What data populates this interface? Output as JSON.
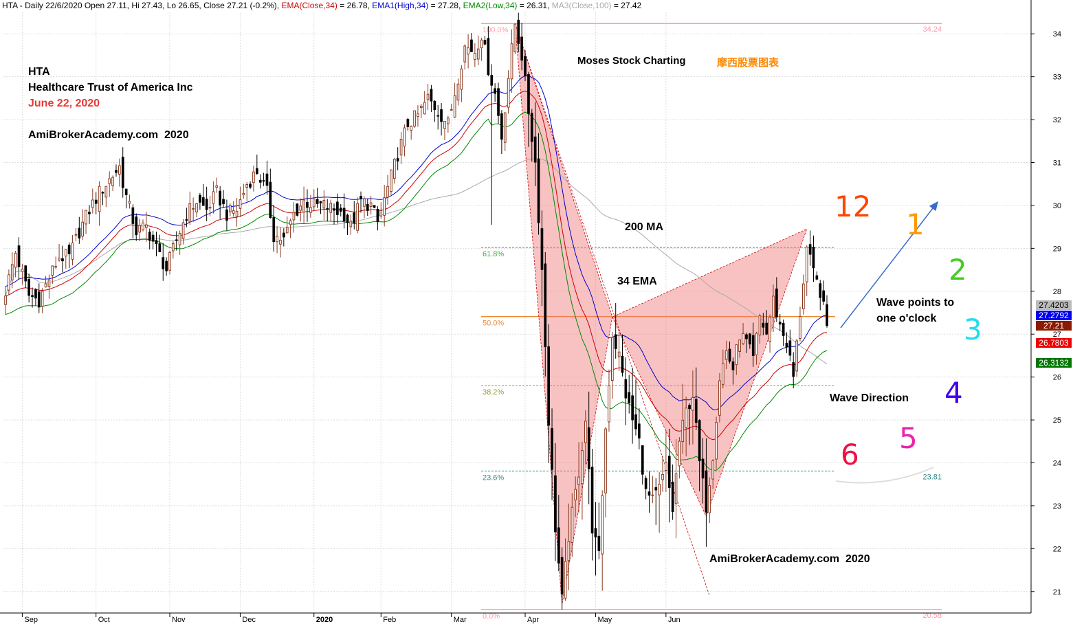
{
  "header": {
    "summary": "HTA - Daily 22/6/2020 Open 27.11, Hi 27.43, Lo 26.65, Close 27.21 (-0.2%)",
    "ema34_close": {
      "label": "EMA(Close,34)",
      "value": "= 26.78,",
      "color": "#cc0000"
    },
    "ema34_high": {
      "label": "EMA1(High,34)",
      "value": "= 27.28,",
      "color": "#0000cc"
    },
    "ema34_low": {
      "label": "EMA2(Low,34)",
      "value": "= 26.31,",
      "color": "#008800"
    },
    "ma100": {
      "label": "MA3(Close,100)",
      "value": "= 27.42",
      "color": "#aaaaaa"
    }
  },
  "annotations": {
    "ticker": "HTA",
    "company": "Healthcare Trust of America Inc",
    "date": "June 22, 2020",
    "site_top": "AmiBrokerAcademy.com  2020",
    "brand_en": "Moses Stock Charting",
    "brand_cn": "摩西股票图表",
    "ma200": "200 MA",
    "ema34": "34 EMA",
    "wave_points_1": "Wave points to",
    "wave_points_2": "one o'clock",
    "wave_direction": "Wave Direction",
    "site_bottom": "AmiBrokerAcademy.com  2020"
  },
  "clock": {
    "n12": "12",
    "n1": "1",
    "n2": "2",
    "n3": "3",
    "n4": "4",
    "n5": "5",
    "n6": "6",
    "colors": {
      "n12": "#ff4400",
      "n1": "#ff9900",
      "n2": "#44cc22",
      "n3": "#22ddee",
      "n4": "#4400ee",
      "n5": "#ee22aa",
      "n6": "#ee1144"
    }
  },
  "price_labels": {
    "ma100": {
      "text": "27.4203",
      "color": "#bbbbbb"
    },
    "ema_high": {
      "text": "27.2792",
      "color": "#0000ee"
    },
    "close": {
      "text": "27.21",
      "color": "#8b1a00"
    },
    "ema_close": {
      "text": "26.7803",
      "color": "#ee0000"
    },
    "ema_low": {
      "text": "26.3132",
      "color": "#007700"
    }
  },
  "chart_data": {
    "type": "candlestick",
    "ylim": [
      20.5,
      34.5
    ],
    "y_ticks": [
      21,
      22,
      23,
      24,
      25,
      26,
      27,
      28,
      29,
      30,
      31,
      32,
      33,
      34
    ],
    "x_ticks": [
      "Sep",
      "Oct",
      "Nov",
      "Dec",
      "2020",
      "Feb",
      "Mar",
      "Apr",
      "May",
      "Jun"
    ],
    "fibonacci": {
      "high": 34.24,
      "low": 20.58,
      "levels": [
        {
          "label": "100.0%",
          "value": 34.24,
          "color": "#ff99aa"
        },
        {
          "label": "61.8%",
          "value": 29.02,
          "color": "#44aa44"
        },
        {
          "label": "50.0%",
          "value": 27.41,
          "color": "#ee8833"
        },
        {
          "label": "38.2%",
          "value": 25.8,
          "color": "#999933"
        },
        {
          "label": "23.6%",
          "value": 23.81,
          "color": "#338888"
        },
        {
          "label": "0.0%",
          "value": 20.58,
          "color": "#ff99aa"
        }
      ],
      "right_labels": [
        "34.24",
        "23.81",
        "20.58"
      ]
    },
    "series": [
      {
        "name": "EMA(Close,34)",
        "color": "#cc0000"
      },
      {
        "name": "EMA1(High,34)",
        "color": "#0000cc"
      },
      {
        "name": "EMA2(Low,34)",
        "color": "#008800"
      },
      {
        "name": "MA3(Close,100)",
        "color": "#aaaaaa"
      }
    ],
    "anchors": [
      [
        0,
        28.0
      ],
      [
        3,
        28.9
      ],
      [
        7,
        27.9
      ],
      [
        10,
        27.8
      ],
      [
        13,
        28.3
      ],
      [
        16,
        28.8
      ],
      [
        19,
        28.8
      ],
      [
        22,
        29.4
      ],
      [
        25,
        29.9
      ],
      [
        28,
        30.3
      ],
      [
        31,
        30.6
      ],
      [
        34,
        30.9
      ],
      [
        36,
        30.2
      ],
      [
        39,
        29.4
      ],
      [
        42,
        29.5
      ],
      [
        45,
        29.0
      ],
      [
        48,
        28.5
      ],
      [
        51,
        29.2
      ],
      [
        54,
        29.8
      ],
      [
        57,
        30.1
      ],
      [
        60,
        29.9
      ],
      [
        63,
        30.3
      ],
      [
        66,
        29.8
      ],
      [
        69,
        29.9
      ],
      [
        72,
        30.5
      ],
      [
        75,
        30.8
      ],
      [
        78,
        30.3
      ],
      [
        80,
        29.3
      ],
      [
        83,
        29.2
      ],
      [
        86,
        29.8
      ],
      [
        89,
        30.1
      ],
      [
        92,
        30.0
      ],
      [
        95,
        30.0
      ],
      [
        98,
        29.9
      ],
      [
        101,
        29.8
      ],
      [
        103,
        29.5
      ],
      [
        106,
        30.1
      ],
      [
        109,
        30.0
      ],
      [
        111,
        29.6
      ],
      [
        114,
        30.4
      ],
      [
        117,
        31.2
      ],
      [
        120,
        31.9
      ],
      [
        123,
        32.1
      ],
      [
        126,
        32.5
      ],
      [
        129,
        32.2
      ],
      [
        132,
        31.9
      ],
      [
        135,
        33.0
      ],
      [
        137,
        33.7
      ],
      [
        140,
        33.6
      ],
      [
        142,
        34.0
      ],
      [
        144,
        33.2
      ],
      [
        146,
        32.6
      ],
      [
        148,
        31.6
      ],
      [
        150,
        33.0
      ],
      [
        152,
        34.24
      ],
      [
        154,
        33.5
      ],
      [
        156,
        32.2
      ],
      [
        158,
        31.0
      ],
      [
        160,
        28.5
      ],
      [
        162,
        25.0
      ],
      [
        164,
        22.5
      ],
      [
        166,
        20.8
      ],
      [
        168,
        22.3
      ],
      [
        171,
        23.8
      ],
      [
        173,
        25.0
      ],
      [
        175,
        22.5
      ],
      [
        177,
        21.8
      ],
      [
        179,
        24.8
      ],
      [
        181,
        27.0
      ],
      [
        183,
        26.5
      ],
      [
        185,
        25.6
      ],
      [
        187,
        25.0
      ],
      [
        189,
        24.5
      ],
      [
        191,
        23.3
      ],
      [
        193,
        23.1
      ],
      [
        195,
        23.4
      ],
      [
        197,
        23.9
      ],
      [
        199,
        22.9
      ],
      [
        201,
        24.5
      ],
      [
        203,
        25.2
      ],
      [
        205,
        25.6
      ],
      [
        207,
        24.0
      ],
      [
        209,
        23.0
      ],
      [
        211,
        24.2
      ],
      [
        213,
        26.0
      ],
      [
        215,
        26.6
      ],
      [
        217,
        26.2
      ],
      [
        219,
        27.0
      ],
      [
        221,
        26.8
      ],
      [
        223,
        26.4
      ],
      [
        225,
        27.4
      ],
      [
        227,
        27.0
      ],
      [
        229,
        27.8
      ],
      [
        231,
        27.2
      ],
      [
        233,
        26.8
      ],
      [
        235,
        26.0
      ],
      [
        237,
        27.5
      ],
      [
        239,
        29.0
      ],
      [
        241,
        28.4
      ],
      [
        243,
        28.0
      ],
      [
        245,
        27.2
      ]
    ]
  }
}
